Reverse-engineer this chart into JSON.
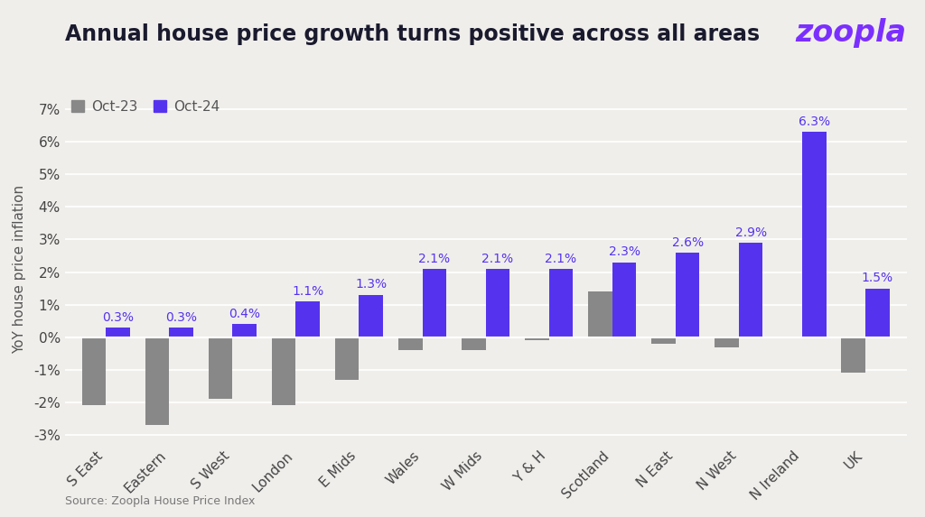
{
  "categories": [
    "S East",
    "Eastern",
    "S West",
    "London",
    "E Mids",
    "Wales",
    "W Mids",
    "Y & H",
    "Scotland",
    "N East",
    "N West",
    "N Ireland",
    "UK"
  ],
  "oct23_values": [
    -2.1,
    -2.7,
    -1.9,
    -2.1,
    -1.3,
    -0.4,
    -0.4,
    -0.1,
    1.4,
    -0.2,
    -0.3,
    null,
    -1.1
  ],
  "oct24_values": [
    0.3,
    0.3,
    0.4,
    1.1,
    1.3,
    2.1,
    2.1,
    2.1,
    2.3,
    2.6,
    2.9,
    6.3,
    1.5
  ],
  "oct23_color": "#888888",
  "oct24_color": "#5533EE",
  "zoopla_color": "#7B2FFF",
  "title": "Annual house price growth turns positive across all areas",
  "title_color": "#1a1a2e",
  "ylabel": "YoY house price inflation",
  "yticks": [
    -3,
    -2,
    -1,
    0,
    1,
    2,
    3,
    4,
    5,
    6,
    7
  ],
  "ytick_labels": [
    "-3%",
    "-2%",
    "-1%",
    "0%",
    "1%",
    "2%",
    "3%",
    "4%",
    "5%",
    "6%",
    "7%"
  ],
  "ylim": [
    -3.3,
    7.5
  ],
  "background_color": "#f0eeeb",
  "source_text": "Source: Zoopla House Price Index",
  "bar_width": 0.38,
  "legend_oct23": "Oct-23",
  "legend_oct24": "Oct-24",
  "title_fontsize": 17,
  "label_fontsize": 11,
  "tick_fontsize": 11,
  "value_label_fontsize": 10
}
